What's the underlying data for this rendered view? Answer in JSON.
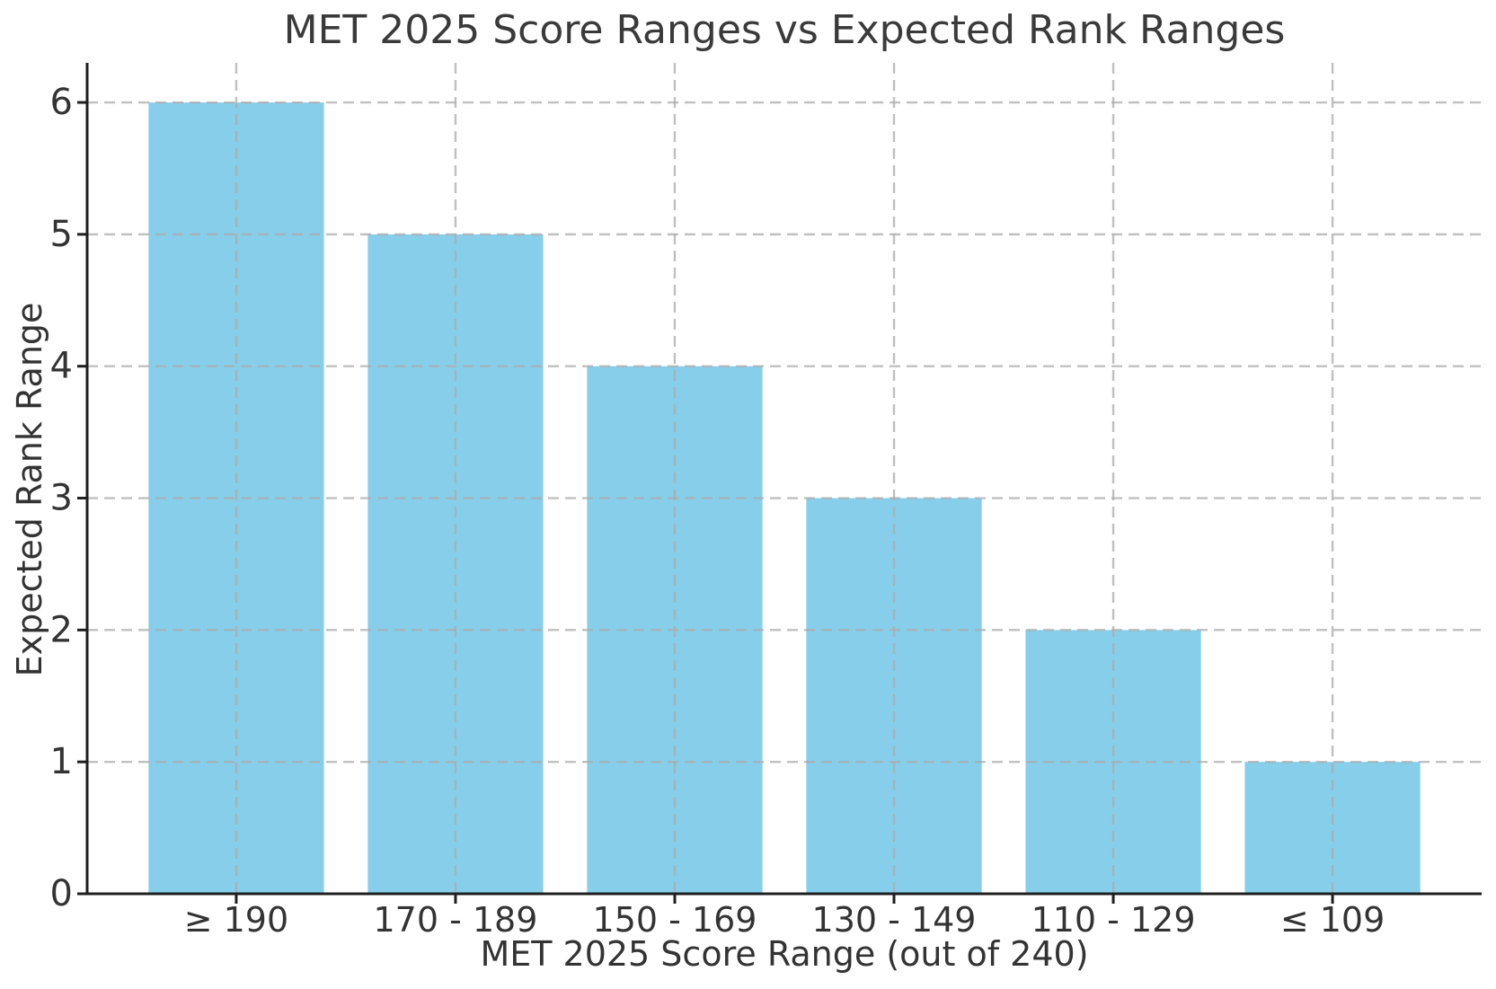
{
  "figure": {
    "background": "#ffffff"
  },
  "chart_data": {
    "type": "bar",
    "title": "MET 2025 Score Ranges vs Expected Rank Ranges",
    "xlabel": "MET 2025 Score Range (out of 240)",
    "ylabel": "Expected Rank Range",
    "categories": [
      "≥ 190",
      "170 - 189",
      "150 - 169",
      "130 - 149",
      "110 - 129",
      "≤ 109"
    ],
    "values": [
      6,
      5,
      4,
      3,
      2,
      1
    ],
    "yticks": [
      0,
      1,
      2,
      3,
      4,
      5,
      6
    ],
    "ylim": [
      0,
      6.3
    ],
    "xlim": [
      -0.68,
      5.68
    ],
    "bar_width_frac": 0.8,
    "grid": "dashed gridlines on both axes, drawn above bars",
    "legend": "none",
    "colors": {
      "bar": "#87CEEB",
      "grid": "#ababab",
      "axis": "#1f1f1f",
      "tick_text": "#333333",
      "title_text": "#3a3a3a",
      "background": "#ffffff"
    }
  }
}
